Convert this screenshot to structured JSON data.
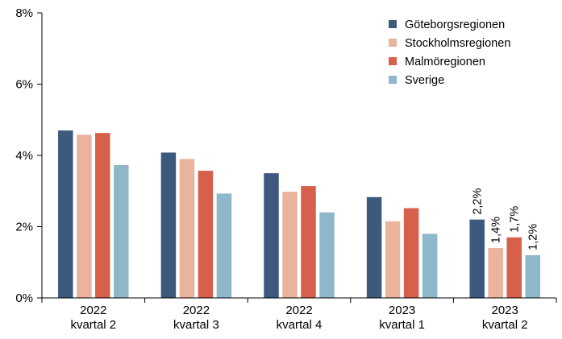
{
  "chart_data": {
    "type": "bar",
    "categories": [
      [
        "2022",
        "kvartal 2"
      ],
      [
        "2022",
        "kvartal 3"
      ],
      [
        "2022",
        "kvartal 4"
      ],
      [
        "2023",
        "kvartal 1"
      ],
      [
        "2023",
        "kvartal 2"
      ]
    ],
    "series": [
      {
        "name": "Göteborgsregionen",
        "color": "#3d5a7e",
        "values": [
          4.7,
          4.08,
          3.5,
          2.83,
          2.2
        ]
      },
      {
        "name": "Stockholmsregionen",
        "color": "#eab39c",
        "values": [
          4.58,
          3.9,
          2.98,
          2.15,
          1.4
        ]
      },
      {
        "name": "Malmöregionen",
        "color": "#d6604b",
        "values": [
          4.63,
          3.57,
          3.14,
          2.52,
          1.7
        ]
      },
      {
        "name": "Sverige",
        "color": "#8fb7ca",
        "values": [
          3.73,
          2.93,
          2.4,
          1.8,
          1.2
        ]
      }
    ],
    "data_labels": {
      "category_index": 4,
      "labels": [
        "2,2%",
        "1,4%",
        "1,7%",
        "1,2%"
      ]
    },
    "y_ticks": [
      "0%",
      "2%",
      "4%",
      "6%",
      "8%"
    ],
    "ylim": [
      0,
      8
    ],
    "y_tick_values": [
      0,
      2,
      4,
      6,
      8
    ],
    "legend_position": "top-right",
    "grid": false
  }
}
